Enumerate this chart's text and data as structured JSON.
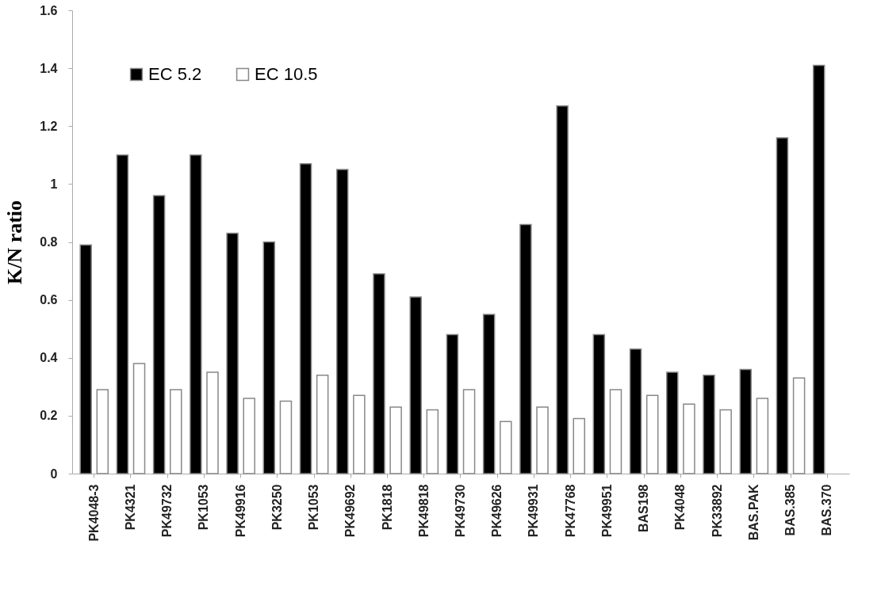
{
  "chart_data": {
    "type": "bar",
    "ylabel": "K/N ratio",
    "categories": [
      "PK4048-3",
      "PK4321",
      "PK49732",
      "PK1053",
      "PK49916",
      "PK3250",
      "PK1053",
      "PK49692",
      "PK1818",
      "PK49818",
      "PK49730",
      "PK49626",
      "PK49931",
      "PK47768",
      "PK49951",
      "BAS198",
      "PK4048",
      "PK33892",
      "BAS.PAK",
      "BAS.385",
      "BAS.370"
    ],
    "series": [
      {
        "name": "EC 5.2",
        "color": "#000000",
        "values": [
          0.79,
          1.1,
          0.96,
          1.1,
          0.83,
          0.8,
          1.07,
          1.05,
          0.69,
          0.61,
          0.48,
          0.55,
          0.86,
          1.27,
          0.48,
          0.43,
          0.35,
          0.34,
          0.36,
          1.16,
          1.41
        ]
      },
      {
        "name": "EC 10.5",
        "color": "#ffffff",
        "values": [
          0.29,
          0.38,
          0.29,
          0.35,
          0.26,
          0.25,
          0.34,
          0.27,
          0.23,
          0.22,
          0.29,
          0.18,
          0.23,
          0.19,
          0.29,
          0.27,
          0.24,
          0.22,
          0.26,
          0.33,
          null
        ]
      }
    ],
    "ylim": [
      0,
      1.6
    ],
    "yticks": [
      0,
      0.2,
      0.4,
      0.6,
      0.8,
      1,
      1.2,
      1.4,
      1.6
    ],
    "grid": false,
    "legend": "top left"
  }
}
